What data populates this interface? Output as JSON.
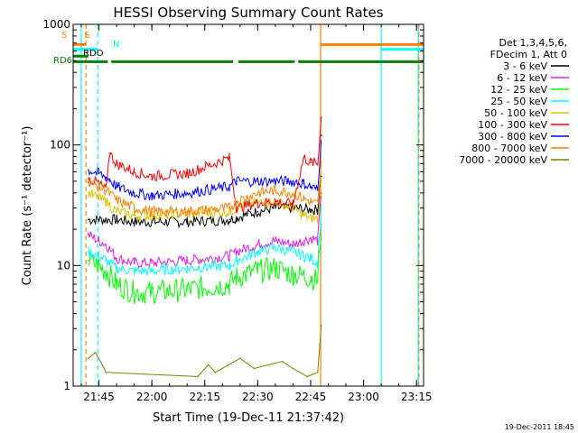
{
  "chart_data": {
    "type": "line",
    "title": "HESSI Observing Summary Count Rates",
    "xlabel": "Start Time (19-Dec-11 21:37:42)",
    "ylabel": "Count Rate (s⁻¹ detector⁻¹)",
    "y_scale": "log",
    "ylim": [
      1,
      1000
    ],
    "xlim": [
      "21:37:42",
      "23:17:00"
    ],
    "x_ticks": [
      "21:45",
      "22:00",
      "22:15",
      "22:30",
      "22:45",
      "23:00",
      "23:15"
    ],
    "y_ticks": [
      "1",
      "10",
      "100",
      "1000"
    ],
    "grid": false,
    "legend_position": "right",
    "legend_header": [
      "Det 1,3,4,5,6,",
      "FDecim 1, Att 0"
    ],
    "series": [
      {
        "name": "3 - 6 keV",
        "color": "#000000",
        "x": [
          "21:42",
          "21:45",
          "21:50",
          "21:55",
          "22:00",
          "22:10",
          "22:22",
          "22:24",
          "22:30",
          "22:35",
          "22:40",
          "22:45",
          "22:47",
          "22:48"
        ],
        "values": [
          24,
          24,
          24,
          23,
          23,
          23,
          24,
          25,
          28,
          30,
          30,
          29,
          29,
          55
        ]
      },
      {
        "name": "6 - 12 keV",
        "color": "#e020e0",
        "x": [
          "21:42",
          "21:45",
          "21:47",
          "21:50",
          "21:55",
          "22:00",
          "22:10",
          "22:22",
          "22:24",
          "22:30",
          "22:35",
          "22:40",
          "22:43",
          "22:45",
          "22:47",
          "22:48"
        ],
        "values": [
          18,
          16,
          15,
          11.5,
          10.5,
          10.5,
          11,
          12,
          13,
          15,
          16,
          15,
          16,
          17,
          16,
          40
        ]
      },
      {
        "name": "12 - 25 keV",
        "color": "#00ff00",
        "x": [
          "21:42",
          "21:45",
          "21:47",
          "21:50",
          "21:55",
          "22:00",
          "22:10",
          "22:22",
          "22:24",
          "22:30",
          "22:35",
          "22:40",
          "22:45",
          "22:47",
          "22:48"
        ],
        "values": [
          11,
          10,
          9,
          7,
          6,
          6,
          6.3,
          7,
          8,
          9,
          9.5,
          8.5,
          8,
          7.5,
          22
        ]
      },
      {
        "name": "25 - 50 keV",
        "color": "#00ffff",
        "x": [
          "21:42",
          "21:45",
          "21:47",
          "21:50",
          "21:55",
          "22:00",
          "22:10",
          "22:22",
          "22:24",
          "22:30",
          "22:35",
          "22:40",
          "22:43",
          "22:45",
          "22:47",
          "22:48"
        ],
        "values": [
          13,
          12,
          11,
          9.5,
          9,
          9,
          9.5,
          10,
          11,
          13,
          14,
          13,
          12,
          11.5,
          10.5,
          30
        ]
      },
      {
        "name": "50 - 100 keV",
        "color": "#e0c000",
        "x": [
          "21:42",
          "21:45",
          "21:47",
          "21:50",
          "21:55",
          "22:00",
          "22:10",
          "22:22",
          "22:24",
          "22:30",
          "22:35",
          "22:40",
          "22:43",
          "22:45",
          "22:47",
          "22:48"
        ],
        "values": [
          40,
          36,
          34,
          28,
          26,
          26,
          27,
          28,
          30,
          33,
          34,
          30,
          26,
          25,
          24,
          50
        ]
      },
      {
        "name": "100 - 300 keV",
        "color": "#ff0000",
        "x": [
          "21:42",
          "21:45",
          "21:47",
          "21:48",
          "21:50",
          "21:55",
          "22:00",
          "22:10",
          "22:22",
          "22:24",
          "22:30",
          "22:35",
          "22:40",
          "22:43",
          "22:45",
          "22:47",
          "22:48"
        ],
        "values": [
          53,
          48,
          42,
          85,
          70,
          60,
          55,
          58,
          78,
          30,
          33,
          34,
          32,
          78,
          72,
          70,
          170
        ]
      },
      {
        "name": "300 - 800 keV",
        "color": "#0000ff",
        "x": [
          "21:42",
          "21:45",
          "21:47",
          "21:48",
          "21:50",
          "21:55",
          "22:00",
          "22:10",
          "22:22",
          "22:24",
          "22:30",
          "22:35",
          "22:40",
          "22:43",
          "22:45",
          "22:47",
          "22:48"
        ],
        "values": [
          62,
          58,
          54,
          52,
          45,
          40,
          38,
          40,
          45,
          50,
          50,
          50,
          50,
          48,
          45,
          42,
          120
        ]
      },
      {
        "name": "800 - 7000 keV",
        "color": "#ff7f00",
        "x": [
          "21:42",
          "21:45",
          "21:47",
          "21:50",
          "21:55",
          "22:00",
          "22:10",
          "22:22",
          "22:24",
          "22:30",
          "22:35",
          "22:40",
          "22:43",
          "22:45",
          "22:47",
          "22:48"
        ],
        "values": [
          50,
          45,
          42,
          35,
          30,
          28,
          28,
          30,
          34,
          40,
          42,
          40,
          36,
          34,
          32,
          70
        ]
      },
      {
        "name": "7000 - 20000 keV",
        "color": "#808000",
        "x": [
          "21:42",
          "21:44",
          "21:46",
          "21:47",
          "22:13",
          "22:16",
          "22:18",
          "22:25",
          "22:29",
          "22:33",
          "22:37",
          "22:40",
          "22:44",
          "22:47",
          "22:48"
        ],
        "values": [
          1.7,
          1.9,
          1.5,
          1.3,
          1.2,
          1.5,
          1.3,
          1.7,
          1.4,
          1.5,
          1.6,
          1.4,
          1.2,
          1.3,
          3.2
        ]
      }
    ],
    "vertical_markers": [
      {
        "time": "21:40",
        "color": "#00ffff",
        "style": "solid"
      },
      {
        "time": "21:41:20",
        "color": "#ff7f00",
        "style": "dashed"
      },
      {
        "time": "21:44:40",
        "color": "#00ffff",
        "style": "dashed"
      },
      {
        "time": "22:47:50",
        "color": "#ff7f00",
        "style": "solid"
      },
      {
        "time": "23:05",
        "color": "#00ffff",
        "style": "solid"
      },
      {
        "time": "23:15:30",
        "color": "#00ffff",
        "style": "solid"
      },
      {
        "time": "23:15:40",
        "color": "#ff7f00",
        "style": "dashed"
      }
    ],
    "flag_bars": [
      {
        "flag": "S",
        "color": "#ff7f00",
        "level": 680,
        "segments": [
          [
            "21:37:42",
            "21:41:20"
          ],
          [
            "22:47:50",
            "23:17:00"
          ]
        ]
      },
      {
        "flag": "N",
        "color": "#00ffff",
        "level": 620,
        "segments": [
          [
            "21:37:42",
            "21:44:40"
          ],
          [
            "23:05",
            "23:17:00"
          ]
        ]
      },
      {
        "flag": "RDO",
        "color": "#008000",
        "level": 545,
        "segments": [
          [
            "21:37:42",
            "21:42"
          ]
        ]
      },
      {
        "flag": "RD6",
        "color": "#008000",
        "level": 490,
        "segments": [
          [
            "21:37:42",
            "21:47:30"
          ],
          [
            "21:48:30",
            "22:23"
          ],
          [
            "22:24:30",
            "22:40:30"
          ],
          [
            "22:41:30",
            "23:17:00"
          ]
        ]
      }
    ],
    "left_labels": [
      {
        "text": "S",
        "color": "#ff7f00"
      },
      {
        "text": "N",
        "color": "#00ffff"
      },
      {
        "text": "RDO",
        "color": "#000000"
      },
      {
        "text": "RD6",
        "color": "#008000"
      }
    ]
  },
  "footer_date": "19-Dec-2011 18:45"
}
